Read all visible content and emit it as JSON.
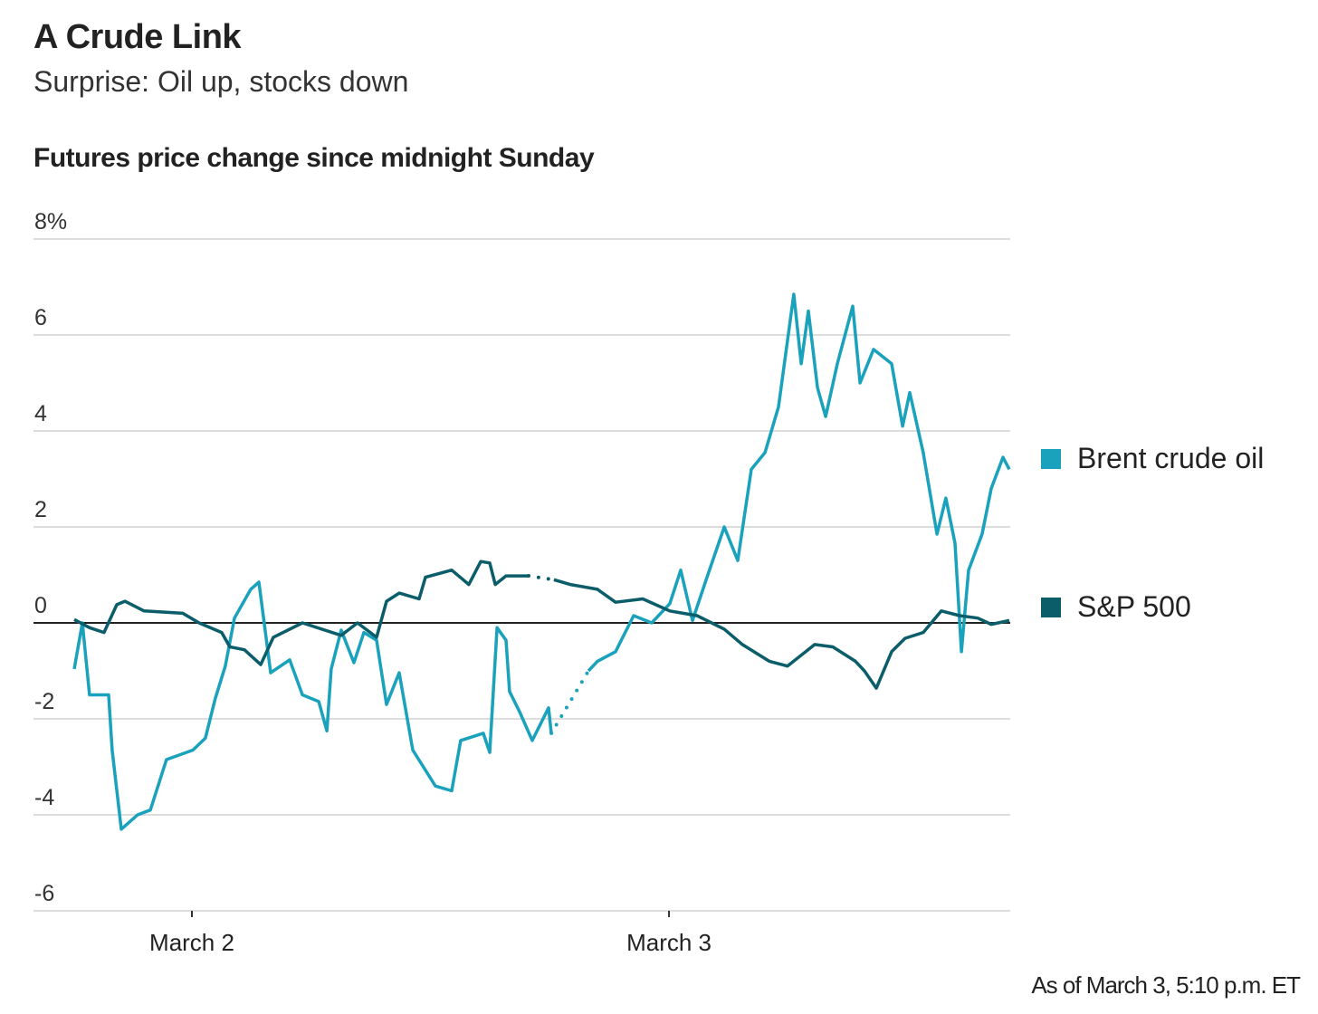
{
  "title": "A Crude Link",
  "subtitle": "Surprise: Oil up, stocks down",
  "footnote": "As of March 3, 5:10 p.m. ET",
  "chart_data": {
    "type": "line",
    "title": "Futures price change since midnight Sunday",
    "x_unit": "hours since midnight starting March 2",
    "ylim": [
      -6,
      8
    ],
    "yticks": [
      8,
      6,
      4,
      2,
      0,
      -2,
      -4,
      -6
    ],
    "ytick_labels": [
      "8%",
      "6",
      "4",
      "2",
      "0",
      "-2",
      "-4",
      "-6"
    ],
    "xticks": [
      {
        "x": 0,
        "label": "March 2"
      },
      {
        "x": 24,
        "label": "March 3"
      }
    ],
    "grid": true,
    "legend_placement": "right",
    "series": [
      {
        "name": "Brent crude oil",
        "color": "#1aa2bd",
        "segments": [
          [
            [
              -5.92,
              -0.96
            ],
            [
              -5.51,
              0
            ],
            [
              -5.15,
              -1.5
            ],
            [
              -4.19,
              -1.5
            ],
            [
              -4.01,
              -2.65
            ],
            [
              -3.55,
              -4.3
            ],
            [
              -2.73,
              -4.0
            ],
            [
              -2.09,
              -3.9
            ],
            [
              -1.28,
              -2.85
            ],
            [
              0.05,
              -2.65
            ],
            [
              0.68,
              -2.4
            ],
            [
              1.18,
              -1.57
            ],
            [
              1.68,
              -0.9
            ],
            [
              2.14,
              0.1
            ],
            [
              2.96,
              0.7
            ],
            [
              3.37,
              0.85
            ],
            [
              3.96,
              -1.04
            ],
            [
              4.92,
              -0.77
            ],
            [
              5.56,
              -1.5
            ],
            [
              6.38,
              -1.64
            ],
            [
              6.79,
              -2.25
            ],
            [
              7.01,
              -0.96
            ],
            [
              7.51,
              -0.15
            ],
            [
              8.15,
              -0.83
            ],
            [
              8.65,
              -0.2
            ],
            [
              9.29,
              -0.36
            ],
            [
              9.79,
              -1.7
            ],
            [
              10.43,
              -1.04
            ],
            [
              11.11,
              -2.65
            ],
            [
              12.25,
              -3.4
            ],
            [
              13.07,
              -3.5
            ],
            [
              13.52,
              -2.45
            ],
            [
              14.66,
              -2.3
            ],
            [
              14.98,
              -2.7
            ],
            [
              15.35,
              -0.1
            ],
            [
              15.8,
              -0.36
            ],
            [
              15.98,
              -1.43
            ],
            [
              16.48,
              -1.85
            ],
            [
              17.12,
              -2.45
            ],
            [
              17.94,
              -1.77
            ],
            [
              18.08,
              -2.3
            ]
          ],
          [
            [
              19.95,
              -1.0
            ],
            [
              20.4,
              -0.8
            ],
            [
              21.31,
              -0.6
            ],
            [
              22.22,
              0.15
            ],
            [
              23.13,
              0
            ],
            [
              24.04,
              0.4
            ],
            [
              24.59,
              1.1
            ],
            [
              25.18,
              0.05
            ],
            [
              25.87,
              0.9
            ],
            [
              26.78,
              2.0
            ],
            [
              27.46,
              1.3
            ],
            [
              28.14,
              3.2
            ],
            [
              28.83,
              3.55
            ],
            [
              29.51,
              4.5
            ],
            [
              30.28,
              6.85
            ],
            [
              30.65,
              5.4
            ],
            [
              31.01,
              6.5
            ],
            [
              31.47,
              4.9
            ],
            [
              31.88,
              4.3
            ],
            [
              32.47,
              5.4
            ],
            [
              33.24,
              6.6
            ],
            [
              33.61,
              5.0
            ],
            [
              34.29,
              5.7
            ],
            [
              35.2,
              5.4
            ],
            [
              35.75,
              4.1
            ],
            [
              36.11,
              4.8
            ],
            [
              36.79,
              3.55
            ],
            [
              37.48,
              1.85
            ],
            [
              37.93,
              2.6
            ],
            [
              38.39,
              1.66
            ],
            [
              38.71,
              -0.6
            ],
            [
              39.07,
              1.1
            ],
            [
              39.75,
              1.85
            ],
            [
              40.21,
              2.8
            ],
            [
              40.8,
              3.45
            ],
            [
              41.12,
              3.2
            ]
          ]
        ]
      },
      {
        "name": "S&P 500",
        "color": "#0b5d69",
        "segments": [
          [
            [
              -5.92,
              0.07
            ],
            [
              -5.15,
              -0.1
            ],
            [
              -4.42,
              -0.2
            ],
            [
              -3.78,
              0.38
            ],
            [
              -3.37,
              0.45
            ],
            [
              -2.41,
              0.25
            ],
            [
              -0.46,
              0.2
            ],
            [
              0.36,
              0
            ],
            [
              1.5,
              -0.2
            ],
            [
              1.91,
              -0.5
            ],
            [
              2.64,
              -0.56
            ],
            [
              3.46,
              -0.87
            ],
            [
              4.1,
              -0.3
            ],
            [
              5.56,
              0
            ],
            [
              7.51,
              -0.26
            ],
            [
              8.33,
              0
            ],
            [
              9.29,
              -0.3
            ],
            [
              9.79,
              0.45
            ],
            [
              10.43,
              0.62
            ],
            [
              11.43,
              0.5
            ],
            [
              11.75,
              0.95
            ],
            [
              13.07,
              1.1
            ],
            [
              13.93,
              0.8
            ],
            [
              14.53,
              1.28
            ],
            [
              14.98,
              1.25
            ],
            [
              15.26,
              0.8
            ],
            [
              15.8,
              0.98
            ],
            [
              16.94,
              0.98
            ]
          ],
          [
            [
              18.21,
              0.9
            ],
            [
              19.03,
              0.8
            ],
            [
              20.4,
              0.7
            ],
            [
              21.31,
              0.43
            ],
            [
              22.68,
              0.5
            ],
            [
              24.04,
              0.25
            ],
            [
              25.41,
              0.15
            ],
            [
              26.78,
              -0.13
            ],
            [
              27.69,
              -0.45
            ],
            [
              29.05,
              -0.8
            ],
            [
              29.96,
              -0.9
            ],
            [
              31.33,
              -0.45
            ],
            [
              32.24,
              -0.5
            ],
            [
              33.38,
              -0.8
            ],
            [
              33.83,
              -1.0
            ],
            [
              34.43,
              -1.36
            ],
            [
              35.2,
              -0.6
            ],
            [
              35.88,
              -0.32
            ],
            [
              36.79,
              -0.2
            ],
            [
              37.7,
              0.25
            ],
            [
              38.62,
              0.15
            ],
            [
              39.53,
              0.1
            ],
            [
              40.21,
              -0.03
            ],
            [
              41.12,
              0.05
            ]
          ]
        ]
      }
    ]
  }
}
